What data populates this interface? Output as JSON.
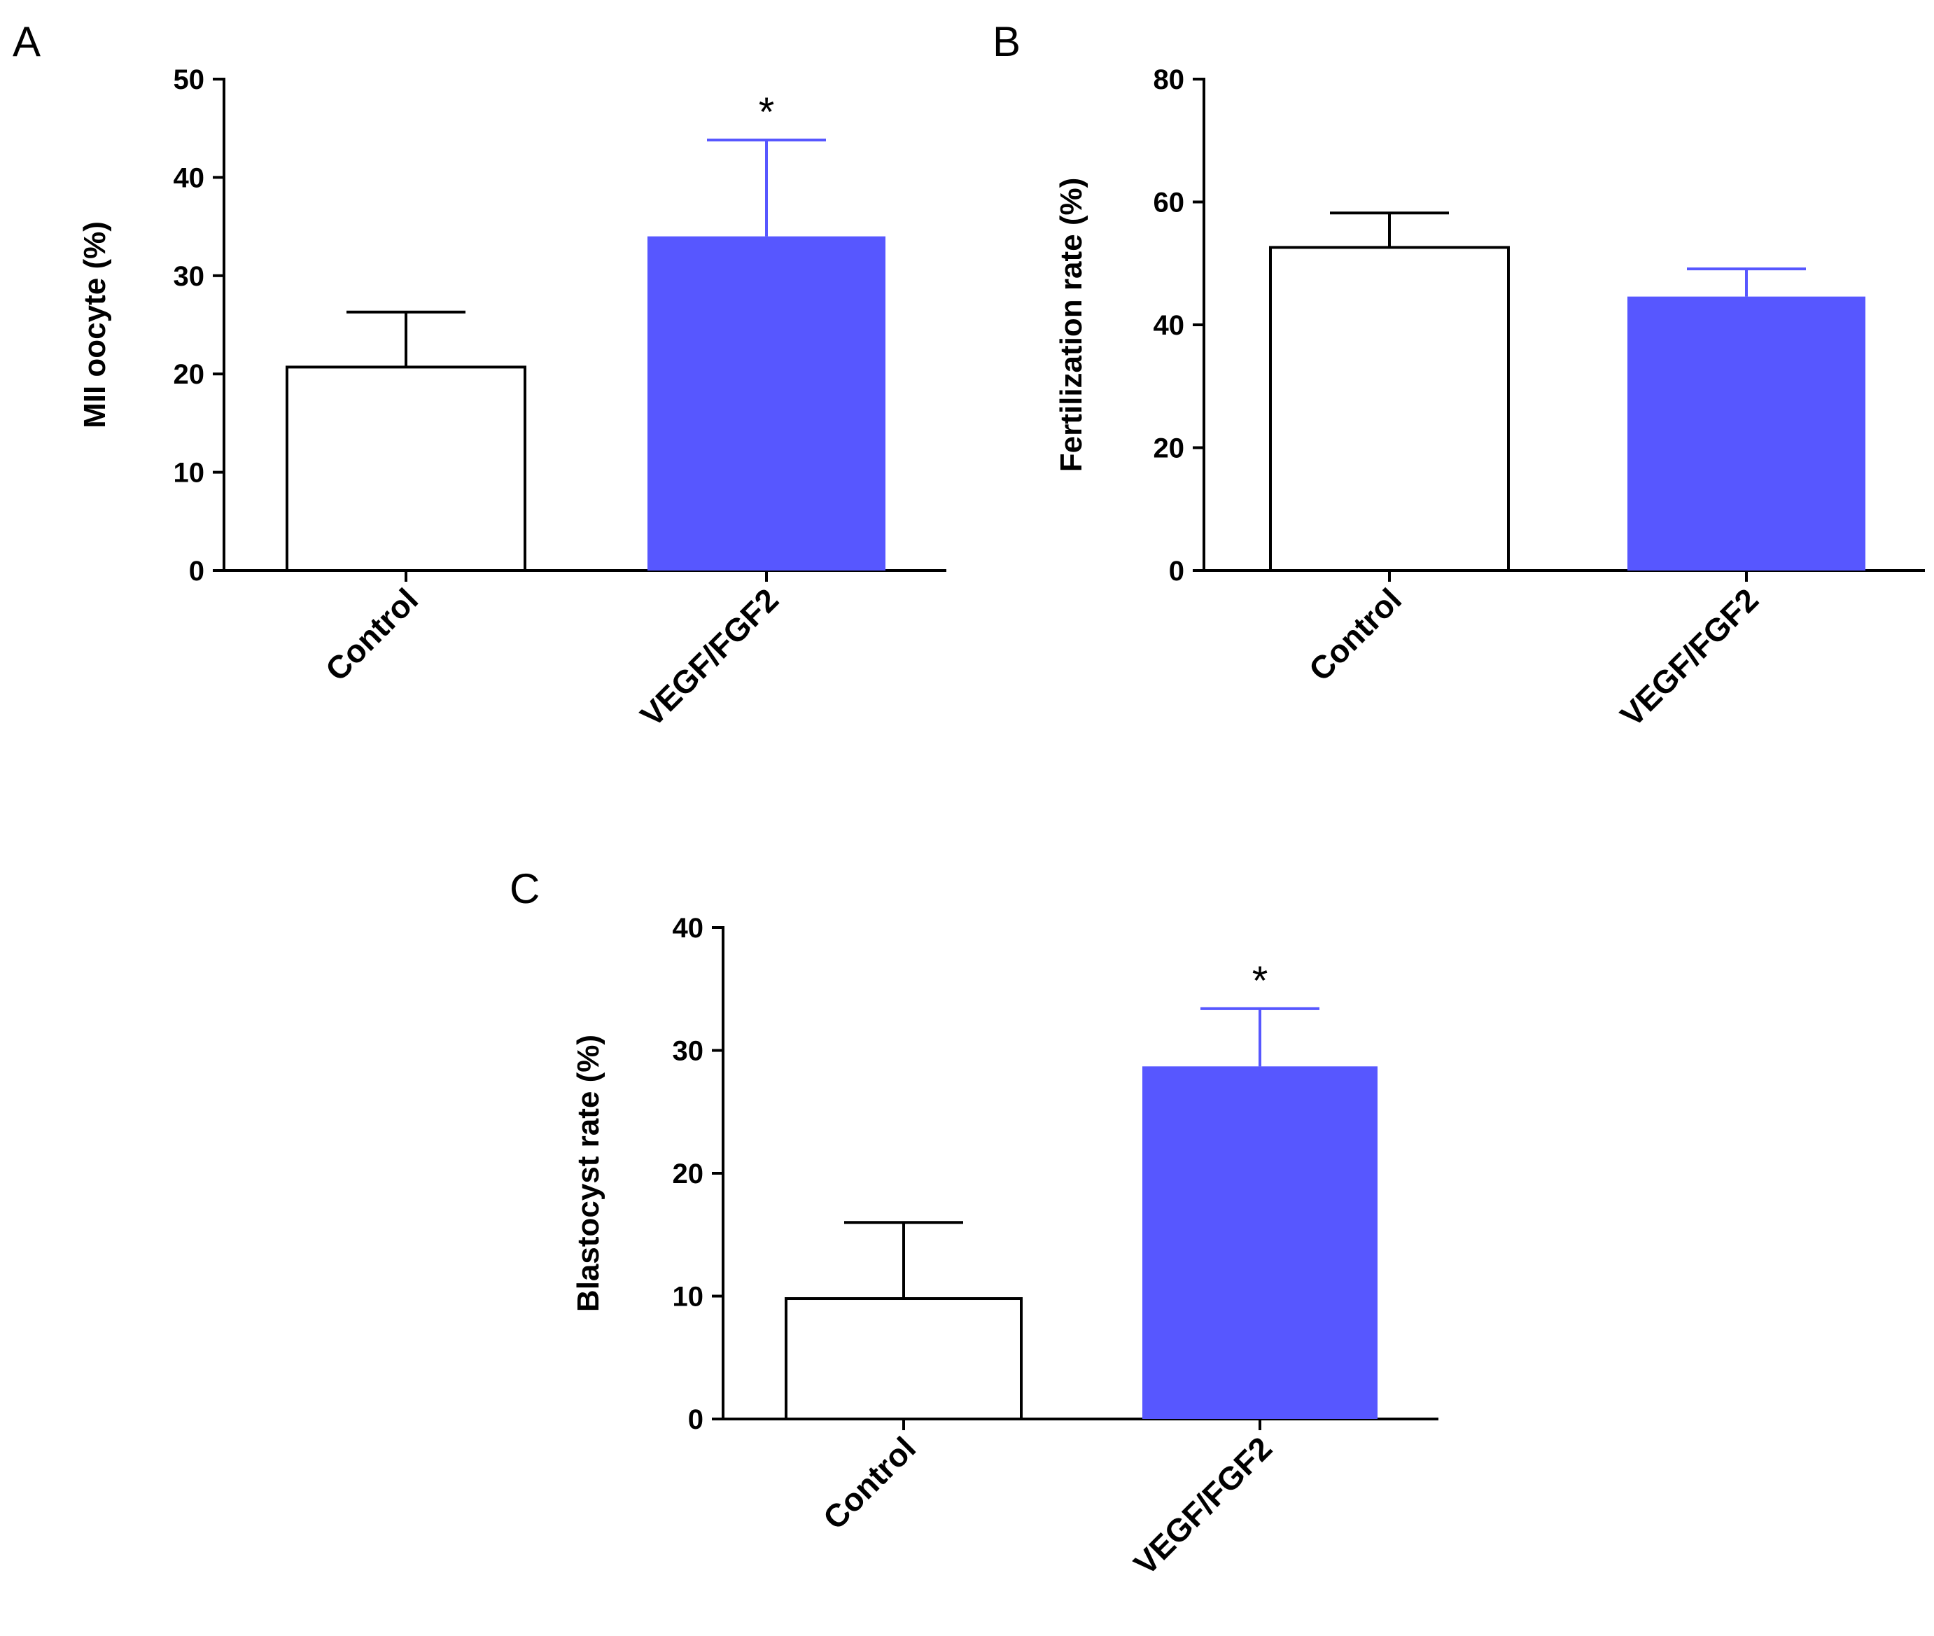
{
  "colors": {
    "control_fill": "#ffffff",
    "treatment_fill": "#5757ff",
    "axis": "#000000",
    "control_error": "#000000",
    "treatment_error": "#5757ff"
  },
  "chart_data": [
    {
      "panel": "A",
      "type": "bar",
      "title": "",
      "xlabel": "",
      "ylabel": "MII oocyte (%)",
      "categories": [
        "Control",
        "VEGF/FGF2"
      ],
      "values": [
        20.7,
        34.0
      ],
      "errors": [
        5.6,
        9.8
      ],
      "ylim": [
        0,
        50
      ],
      "yticks": [
        "0",
        "10",
        "20",
        "30",
        "40",
        "50"
      ],
      "significance": [
        "",
        "*"
      ]
    },
    {
      "panel": "B",
      "type": "bar",
      "title": "",
      "xlabel": "",
      "ylabel": "Fertilization rate (%)",
      "categories": [
        "Control",
        "VEGF/FGF2"
      ],
      "values": [
        52.6,
        44.6
      ],
      "errors": [
        5.6,
        4.5
      ],
      "ylim": [
        0,
        80
      ],
      "yticks": [
        "0",
        "20",
        "40",
        "60",
        "80"
      ],
      "significance": [
        "",
        ""
      ]
    },
    {
      "panel": "C",
      "type": "bar",
      "title": "",
      "xlabel": "",
      "ylabel": "Blastocyst rate (%)",
      "categories": [
        "Control",
        "VEGF/FGF2"
      ],
      "values": [
        9.8,
        28.7
      ],
      "errors": [
        6.2,
        4.7
      ],
      "ylim": [
        0,
        40
      ],
      "yticks": [
        "0",
        "10",
        "20",
        "30",
        "40"
      ],
      "significance": [
        "",
        "*"
      ]
    }
  ]
}
